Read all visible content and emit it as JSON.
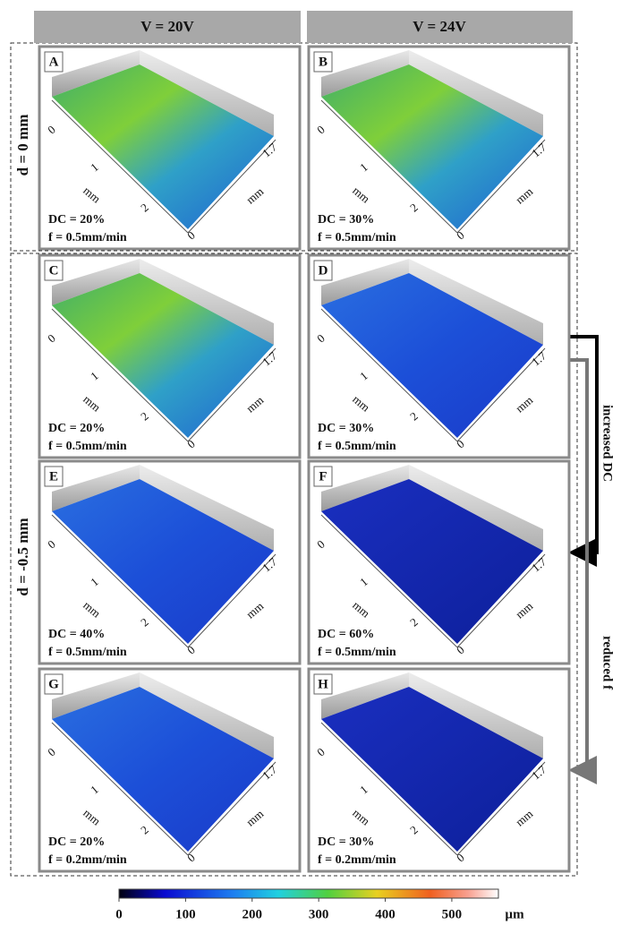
{
  "column_headers": [
    "V = 20V",
    "V = 24V"
  ],
  "row_labels": [
    "d = 0 mm",
    "d = -0.5 mm"
  ],
  "panels": [
    {
      "letter": "A",
      "dc": "DC = 20%",
      "f": "f = 0.5mm/min"
    },
    {
      "letter": "B",
      "dc": "DC = 30%",
      "f": "f = 0.5mm/min"
    },
    {
      "letter": "C",
      "dc": "DC = 20%",
      "f": "f = 0.5mm/min"
    },
    {
      "letter": "D",
      "dc": "DC = 30%",
      "f": "f = 0.5mm/min"
    },
    {
      "letter": "E",
      "dc": "DC = 40%",
      "f": "f = 0.5mm/min"
    },
    {
      "letter": "F",
      "dc": "DC = 60%",
      "f": "f = 0.5mm/min"
    },
    {
      "letter": "G",
      "dc": "DC = 20%",
      "f": "f = 0.2mm/min"
    },
    {
      "letter": "H",
      "dc": "DC = 30%",
      "f": "f = 0.2mm/min"
    }
  ],
  "axis_labels": {
    "origin": "0",
    "x_ticks": [
      "1",
      "2"
    ],
    "y_end": "1.7",
    "unit": "mm"
  },
  "arrows": [
    "increased DC",
    "reduced f"
  ],
  "colorbar": {
    "lim": [
      0,
      570
    ],
    "ticks": [
      0,
      100,
      200,
      300,
      400,
      500
    ],
    "unit": "µm"
  }
}
